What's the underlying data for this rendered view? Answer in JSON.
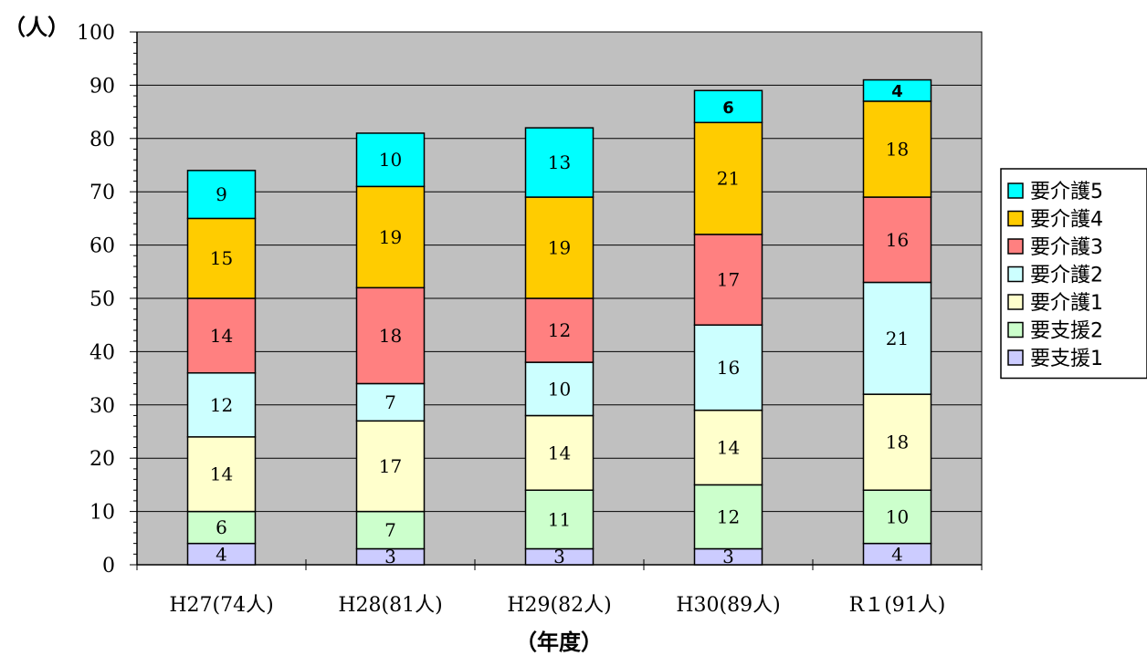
{
  "chart_data": {
    "type": "bar",
    "stacked": true,
    "title": "",
    "ylabel": "（人）",
    "xlabel": "（年度）",
    "ylim": [
      0,
      100
    ],
    "yticks": [
      0,
      10,
      20,
      30,
      40,
      50,
      60,
      70,
      80,
      90,
      100
    ],
    "grid": true,
    "legend_position": "right",
    "categories": [
      "H27(74人)",
      "H28(81人)",
      "H29(82人)",
      "H30(89人)",
      "R１(91人)"
    ],
    "series": [
      {
        "name": "要支援1",
        "color": "#ccccff",
        "values": [
          4,
          3,
          3,
          3,
          4
        ]
      },
      {
        "name": "要支援2",
        "color": "#ccffcc",
        "values": [
          6,
          7,
          11,
          12,
          10
        ]
      },
      {
        "name": "要介護1",
        "color": "#ffffcc",
        "values": [
          14,
          17,
          14,
          14,
          18
        ]
      },
      {
        "name": "要介護2",
        "color": "#ccffff",
        "values": [
          12,
          7,
          10,
          16,
          21
        ]
      },
      {
        "name": "要介護3",
        "color": "#ff8080",
        "values": [
          14,
          18,
          12,
          17,
          16
        ]
      },
      {
        "name": "要介護4",
        "color": "#ffcc00",
        "values": [
          15,
          19,
          19,
          21,
          18
        ]
      },
      {
        "name": "要介護5",
        "color": "#00ffff",
        "values": [
          9,
          10,
          13,
          6,
          4
        ]
      }
    ],
    "legend_order": [
      "要介護5",
      "要介護4",
      "要介護3",
      "要介護2",
      "要介護1",
      "要支援2",
      "要支援1"
    ],
    "plot_background": "#c0c0c0"
  }
}
